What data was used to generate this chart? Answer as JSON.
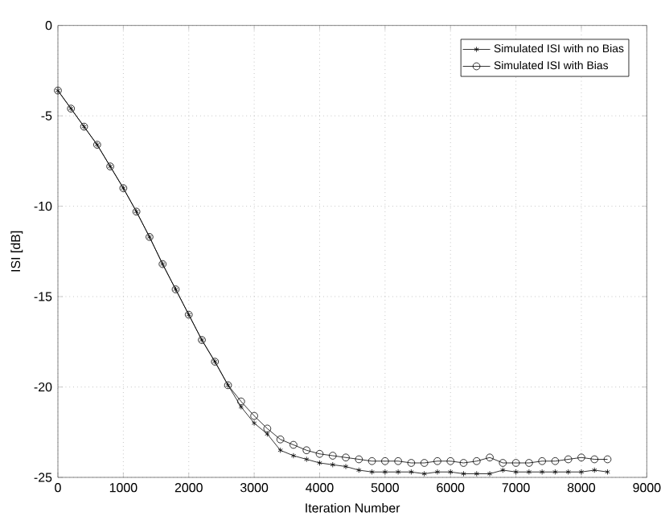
{
  "chart_data": {
    "type": "line",
    "xlabel": "Iteration Number",
    "ylabel": "ISI [dB]",
    "xlim": [
      0,
      9000
    ],
    "ylim": [
      -25,
      0
    ],
    "xticks": [
      0,
      1000,
      2000,
      3000,
      4000,
      5000,
      6000,
      7000,
      8000,
      9000
    ],
    "yticks": [
      -25,
      -20,
      -15,
      -10,
      -5,
      0
    ],
    "grid": true,
    "legend": "top right",
    "x": [
      0,
      200,
      400,
      600,
      800,
      1000,
      1200,
      1400,
      1600,
      1800,
      2000,
      2200,
      2400,
      2600,
      2800,
      3000,
      3200,
      3400,
      3600,
      3800,
      4000,
      4200,
      4400,
      4600,
      4800,
      5000,
      5200,
      5400,
      5600,
      5800,
      6000,
      6200,
      6400,
      6600,
      6800,
      7000,
      7200,
      7400,
      7600,
      7800,
      8000,
      8200,
      8400
    ],
    "series": [
      {
        "name": "Simulated ISI with no Bias",
        "color": "#000000",
        "marker": "cross",
        "values": [
          -3.6,
          -4.6,
          -5.6,
          -6.6,
          -7.8,
          -9.0,
          -10.3,
          -11.7,
          -13.2,
          -14.6,
          -16.0,
          -17.4,
          -18.6,
          -19.9,
          -21.1,
          -22.0,
          -22.6,
          -23.5,
          -23.8,
          -24.0,
          -24.2,
          -24.3,
          -24.4,
          -24.6,
          -24.7,
          -24.7,
          -24.7,
          -24.7,
          -24.8,
          -24.7,
          -24.7,
          -24.8,
          -24.8,
          -24.8,
          -24.6,
          -24.7,
          -24.7,
          -24.7,
          -24.7,
          -24.7,
          -24.7,
          -24.6,
          -24.7
        ]
      },
      {
        "name": "Simulated ISI with Bias",
        "color": "#000000",
        "marker": "circle",
        "values": [
          -3.6,
          -4.6,
          -5.6,
          -6.6,
          -7.8,
          -9.0,
          -10.3,
          -11.7,
          -13.2,
          -14.6,
          -16.0,
          -17.4,
          -18.6,
          -19.9,
          -20.8,
          -21.6,
          -22.3,
          -22.9,
          -23.2,
          -23.5,
          -23.7,
          -23.8,
          -23.9,
          -24.0,
          -24.1,
          -24.1,
          -24.1,
          -24.2,
          -24.2,
          -24.1,
          -24.1,
          -24.2,
          -24.1,
          -23.9,
          -24.2,
          -24.2,
          -24.2,
          -24.1,
          -24.1,
          -24.0,
          -23.9,
          -24.0,
          -24.0
        ]
      }
    ]
  }
}
